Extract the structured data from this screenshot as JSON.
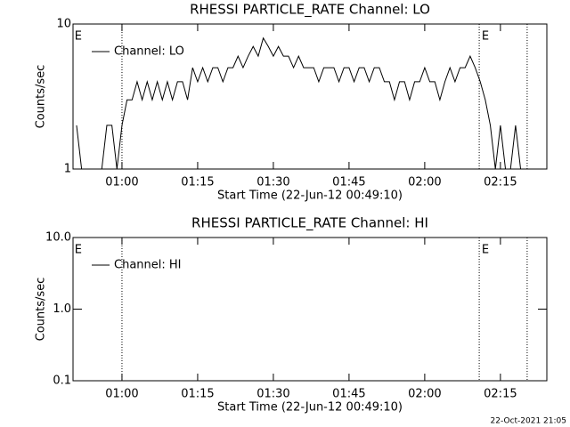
{
  "chart_data": [
    {
      "type": "line",
      "title": "RHESSI PARTICLE_RATE Channel: LO",
      "xlabel": "Start Time (22-Jun-12 00:49:10)",
      "ylabel": "Counts/sec",
      "log_y": true,
      "legend": "top-left",
      "xlim": [
        50.3,
        144.2
      ],
      "xticks": [
        {
          "value": 60,
          "label": "01:00"
        },
        {
          "value": 75,
          "label": "01:15"
        },
        {
          "value": 90,
          "label": "01:30"
        },
        {
          "value": 105,
          "label": "01:45"
        },
        {
          "value": 120,
          "label": "02:00"
        },
        {
          "value": 135,
          "label": "02:15"
        }
      ],
      "ylim": [
        1,
        10
      ],
      "yticks": [
        1,
        10
      ],
      "vlines": [
        60,
        130.8,
        140.3
      ],
      "annotations": [
        {
          "x": 50.6,
          "text": "E"
        },
        {
          "x": 131.3,
          "text": "E"
        }
      ],
      "series": [
        {
          "name": "Channel: LO",
          "color": "#000000",
          "x": [
            51,
            52,
            53,
            54,
            55,
            56,
            57,
            58,
            59,
            60,
            61,
            62,
            63,
            64,
            65,
            66,
            67,
            68,
            69,
            70,
            71,
            72,
            73,
            74,
            75,
            76,
            77,
            78,
            79,
            80,
            81,
            82,
            83,
            84,
            85,
            86,
            87,
            88,
            89,
            90,
            91,
            92,
            93,
            94,
            95,
            96,
            97,
            98,
            99,
            100,
            101,
            102,
            103,
            104,
            105,
            106,
            107,
            108,
            109,
            110,
            111,
            112,
            113,
            114,
            115,
            116,
            117,
            118,
            119,
            120,
            121,
            122,
            123,
            124,
            125,
            126,
            127,
            128,
            129,
            130,
            131,
            132,
            133,
            134,
            135,
            136,
            137,
            138,
            139,
            140
          ],
          "values": [
            2,
            1,
            1,
            1,
            1,
            1,
            2,
            2,
            1,
            2,
            3,
            3,
            4,
            3,
            4,
            3,
            4,
            3,
            4,
            3,
            4,
            4,
            3,
            5,
            4,
            5,
            4,
            5,
            5,
            4,
            5,
            5,
            6,
            5,
            6,
            7,
            6,
            8,
            7,
            6,
            7,
            6,
            6,
            5,
            6,
            5,
            5,
            5,
            4,
            5,
            5,
            5,
            4,
            5,
            5,
            4,
            5,
            5,
            4,
            5,
            5,
            4,
            4,
            3,
            4,
            4,
            3,
            4,
            4,
            5,
            4,
            4,
            3,
            4,
            5,
            4,
            5,
            5,
            6,
            5,
            4,
            3,
            2,
            1,
            2,
            1,
            1,
            2,
            1,
            1
          ]
        }
      ]
    },
    {
      "type": "line",
      "title": "RHESSI PARTICLE_RATE Channel: HI",
      "xlabel": "Start Time (22-Jun-12 00:49:10)",
      "ylabel": "Counts/sec",
      "log_y": true,
      "legend": "top-left",
      "xlim": [
        50.3,
        144.2
      ],
      "xticks": [
        {
          "value": 60,
          "label": "01:00"
        },
        {
          "value": 75,
          "label": "01:15"
        },
        {
          "value": 90,
          "label": "01:30"
        },
        {
          "value": 105,
          "label": "01:45"
        },
        {
          "value": 120,
          "label": "02:00"
        },
        {
          "value": 135,
          "label": "02:15"
        }
      ],
      "ylim": [
        0.1,
        10
      ],
      "yticks": [
        0.1,
        {
          "value": 1,
          "label": "1.0"
        },
        {
          "value": 10,
          "label": "10.0"
        }
      ],
      "vlines": [
        60,
        130.8,
        140.3
      ],
      "annotations": [
        {
          "x": 50.6,
          "text": "E"
        },
        {
          "x": 131.3,
          "text": "E"
        }
      ],
      "series": [
        {
          "name": "Channel: HI",
          "color": "#000000",
          "x": [],
          "values": []
        }
      ]
    }
  ],
  "footer": "22-Oct-2021 21:05"
}
